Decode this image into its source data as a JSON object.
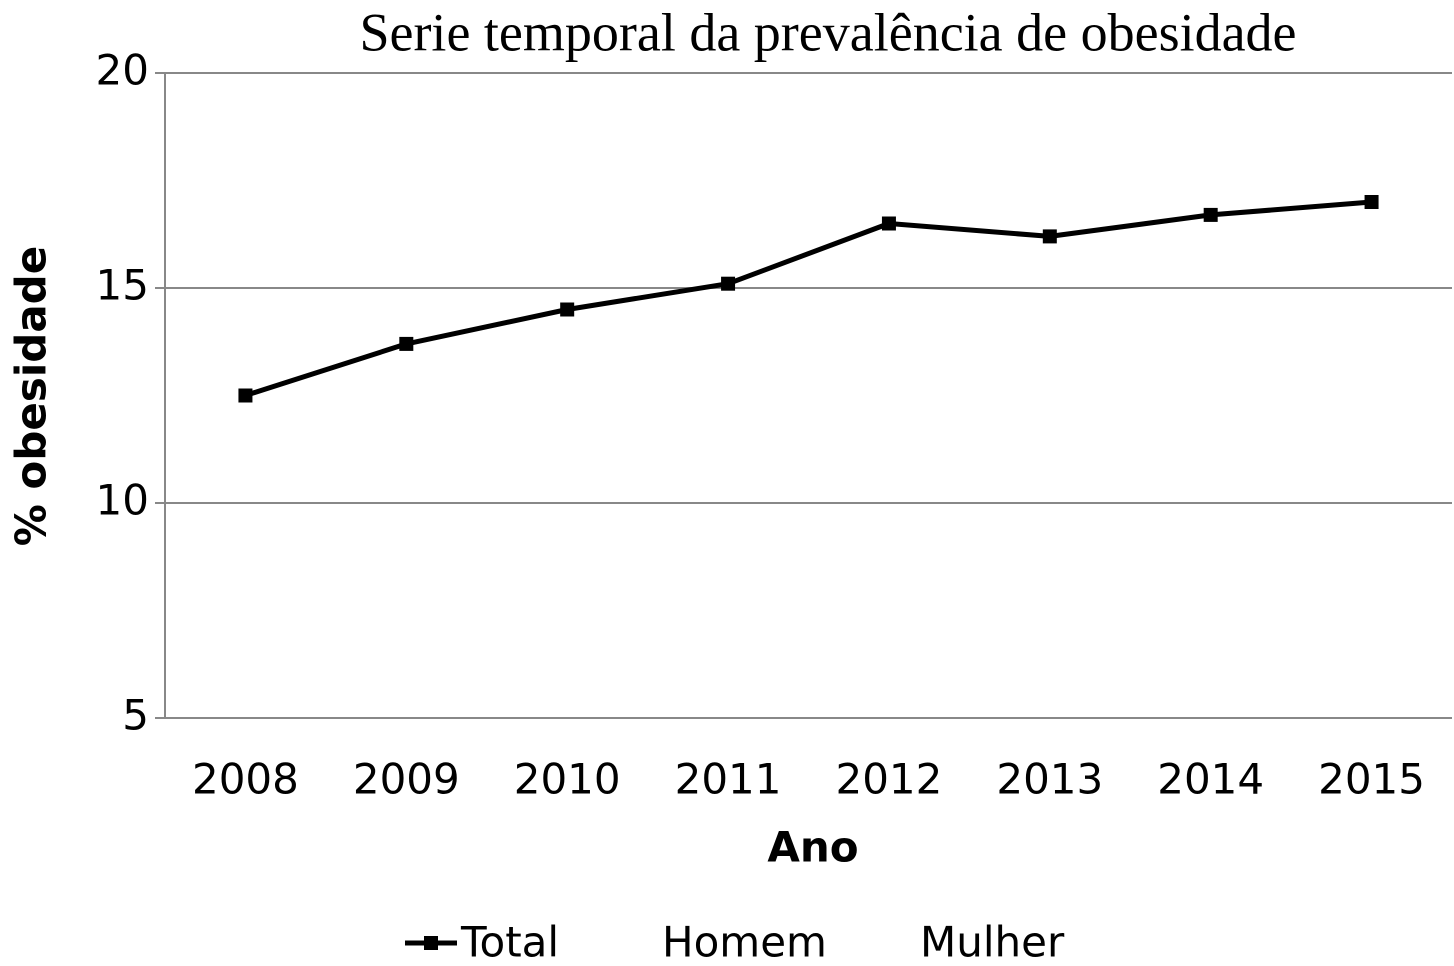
{
  "chart_data": {
    "type": "line",
    "title": "Serie temporal da prevalência de obesidade",
    "x_label": "Ano",
    "y_label": "% obesidade",
    "categories": [
      "2008",
      "2009",
      "2010",
      "2011",
      "2012",
      "2013",
      "2014",
      "2015"
    ],
    "series": [
      {
        "name": "Total",
        "color": "#000000",
        "values": [
          12.5,
          13.7,
          14.5,
          15.1,
          16.5,
          16.2,
          16.7,
          17.0
        ]
      },
      {
        "name": "Homem",
        "values": [
          null,
          null,
          null,
          null,
          null,
          null,
          null,
          null
        ]
      },
      {
        "name": "Mulher",
        "values": [
          null,
          null,
          null,
          null,
          null,
          null,
          null,
          null
        ]
      }
    ],
    "ylim": [
      5,
      20
    ],
    "yticks": [
      5,
      10,
      15,
      20
    ],
    "grid": true,
    "legend": "bottom"
  }
}
